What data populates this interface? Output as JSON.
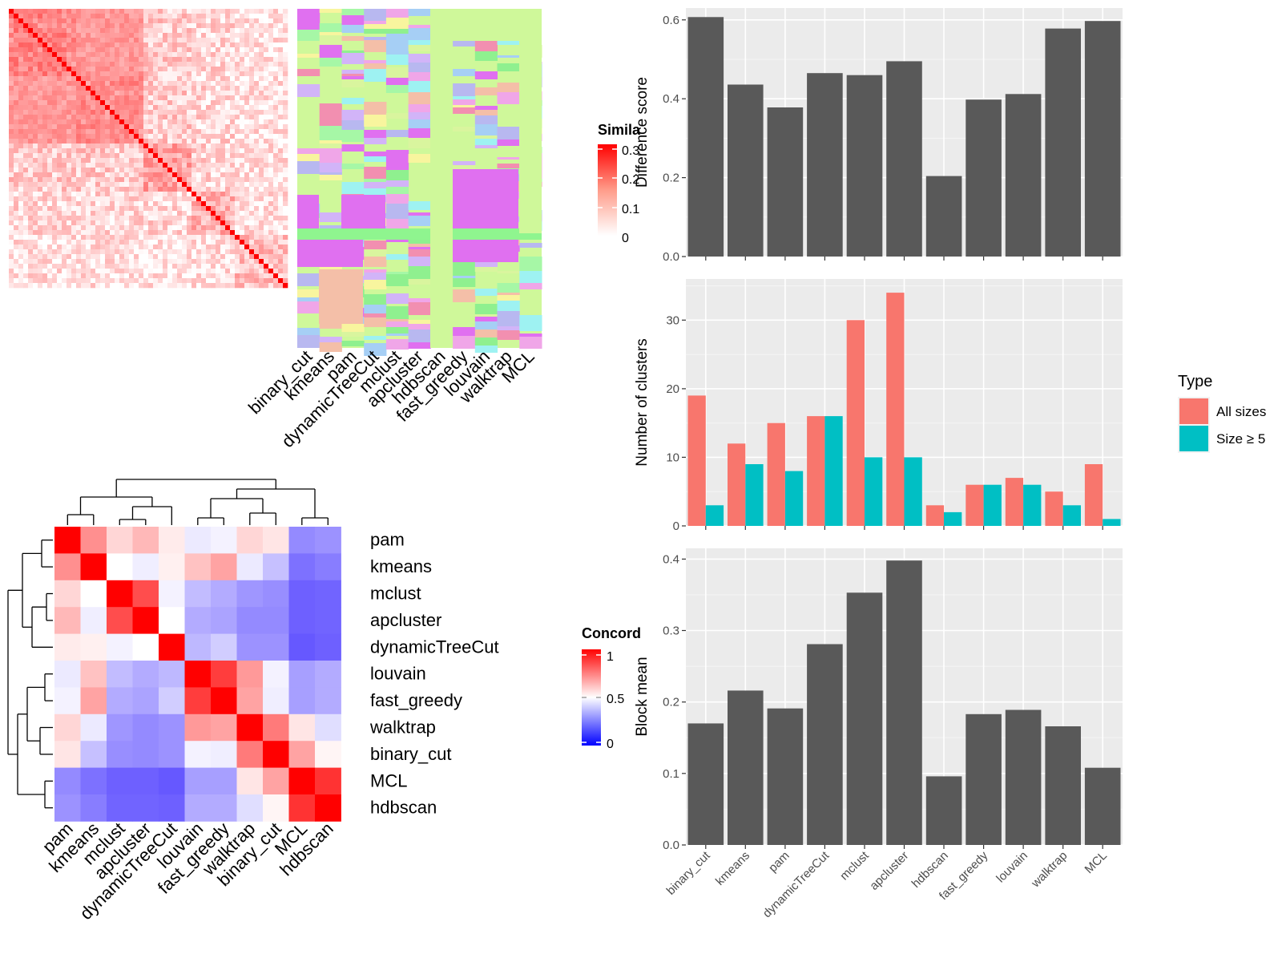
{
  "methods": [
    "binary_cut",
    "kmeans",
    "pam",
    "dynamicTreeCut",
    "mclust",
    "apcluster",
    "hdbscan",
    "fast_greedy",
    "louvain",
    "walktrap",
    "MCL"
  ],
  "heatmap_panel": {
    "method_labels": [
      "binary_cut",
      "kmeans",
      "pam",
      "dynamicTreeCut",
      "mclust",
      "apcluster",
      "hdbscan",
      "fast_greedy",
      "louvain",
      "walktrap",
      "MCL"
    ],
    "legend_title": "Simila",
    "legend_ticks": [
      "0.3",
      "0.2",
      "0.1",
      "0"
    ]
  },
  "concordance_panel": {
    "legend_title": "Concord",
    "legend_ticks": [
      "1",
      "0.5",
      "0"
    ]
  },
  "colors": {
    "bar_fill": "#595959",
    "panel_bg": "#EBEBEB",
    "all_sizes": "#F8766D",
    "size_ge5": "#00BFC4",
    "similarity_high": "#FF0000",
    "concordance_high": "#FF0000",
    "concordance_mid": "#FFFFFF",
    "concordance_low": "#0000FF"
  },
  "chart_data": [
    {
      "type": "heatmap",
      "title": "",
      "rows": [
        "pam",
        "kmeans",
        "mclust",
        "apcluster",
        "dynamicTreeCut",
        "louvain",
        "fast_greedy",
        "walktrap",
        "binary_cut",
        "MCL",
        "hdbscan"
      ],
      "cols": [
        "pam",
        "kmeans",
        "mclust",
        "apcluster",
        "dynamicTreeCut",
        "louvain",
        "fast_greedy",
        "walktrap",
        "binary_cut",
        "MCL",
        "hdbscan"
      ],
      "values": [
        [
          1.0,
          0.72,
          0.58,
          0.64,
          0.54,
          0.45,
          0.47,
          0.58,
          0.55,
          0.22,
          0.24
        ],
        [
          0.72,
          1.0,
          0.5,
          0.46,
          0.53,
          0.62,
          0.68,
          0.45,
          0.35,
          0.16,
          0.19
        ],
        [
          0.58,
          0.5,
          1.0,
          0.85,
          0.47,
          0.34,
          0.3,
          0.25,
          0.23,
          0.12,
          0.13
        ],
        [
          0.64,
          0.46,
          0.85,
          1.0,
          0.5,
          0.3,
          0.28,
          0.22,
          0.22,
          0.12,
          0.13
        ],
        [
          0.54,
          0.53,
          0.47,
          0.5,
          1.0,
          0.33,
          0.38,
          0.24,
          0.24,
          0.1,
          0.12
        ],
        [
          0.45,
          0.62,
          0.34,
          0.3,
          0.33,
          1.0,
          0.88,
          0.7,
          0.47,
          0.27,
          0.3
        ],
        [
          0.47,
          0.68,
          0.3,
          0.28,
          0.38,
          0.88,
          1.0,
          0.68,
          0.46,
          0.27,
          0.3
        ],
        [
          0.58,
          0.45,
          0.25,
          0.22,
          0.24,
          0.7,
          0.68,
          1.0,
          0.76,
          0.55,
          0.42
        ],
        [
          0.55,
          0.35,
          0.23,
          0.22,
          0.24,
          0.47,
          0.46,
          0.76,
          1.0,
          0.68,
          0.52
        ],
        [
          0.22,
          0.16,
          0.12,
          0.12,
          0.1,
          0.27,
          0.27,
          0.55,
          0.68,
          1.0,
          0.9
        ],
        [
          0.24,
          0.19,
          0.13,
          0.13,
          0.12,
          0.3,
          0.3,
          0.42,
          0.52,
          0.9,
          1.0
        ]
      ],
      "range": [
        0,
        1
      ]
    },
    {
      "type": "bar",
      "categories": [
        "binary_cut",
        "kmeans",
        "pam",
        "dynamicTreeCut",
        "mclust",
        "apcluster",
        "hdbscan",
        "fast_greedy",
        "louvain",
        "walktrap",
        "MCL"
      ],
      "values": [
        0.607,
        0.436,
        0.378,
        0.465,
        0.46,
        0.495,
        0.204,
        0.398,
        0.412,
        0.578,
        0.597
      ],
      "xlabel": "",
      "ylabel": "Difference score",
      "ylim": [
        0,
        0.63
      ],
      "yticks": [
        "0.0",
        "0.2",
        "0.4",
        "0.6"
      ],
      "ytick_values": [
        0,
        0.2,
        0.4,
        0.6
      ]
    },
    {
      "type": "bar",
      "categories": [
        "binary_cut",
        "kmeans",
        "pam",
        "dynamicTreeCut",
        "mclust",
        "apcluster",
        "hdbscan",
        "fast_greedy",
        "louvain",
        "walktrap",
        "MCL"
      ],
      "series": [
        {
          "name": "All sizes",
          "values": [
            19,
            12,
            15,
            16,
            30,
            34,
            3,
            6,
            7,
            5,
            9
          ]
        },
        {
          "name": "Size ≥ 5",
          "values": [
            3,
            9,
            8,
            16,
            10,
            10,
            2,
            6,
            6,
            3,
            1
          ]
        }
      ],
      "xlabel": "",
      "ylabel": "Number of clusters",
      "ylim": [
        0,
        36
      ],
      "yticks": [
        "0",
        "10",
        "20",
        "30"
      ],
      "ytick_values": [
        0,
        10,
        20,
        30
      ],
      "legend_title": "Type",
      "legend_position": "right"
    },
    {
      "type": "bar",
      "categories": [
        "binary_cut",
        "kmeans",
        "pam",
        "dynamicTreeCut",
        "mclust",
        "apcluster",
        "hdbscan",
        "fast_greedy",
        "louvain",
        "walktrap",
        "MCL"
      ],
      "values": [
        0.17,
        0.216,
        0.191,
        0.281,
        0.353,
        0.398,
        0.096,
        0.183,
        0.189,
        0.166,
        0.108
      ],
      "xlabel": "",
      "ylabel": "Block mean",
      "ylim": [
        0,
        0.415
      ],
      "yticks": [
        "0.0",
        "0.1",
        "0.2",
        "0.3",
        "0.4"
      ],
      "ytick_values": [
        0,
        0.1,
        0.2,
        0.3,
        0.4
      ]
    }
  ]
}
